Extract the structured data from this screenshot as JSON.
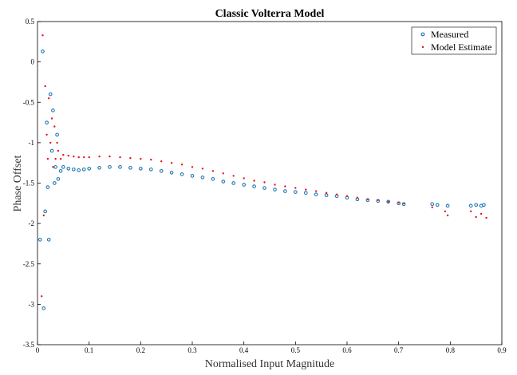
{
  "chart_data": {
    "type": "scatter",
    "title": "Classic Volterra Model",
    "xlabel": "Normalised Input Magnitude",
    "ylabel": "Phase Offset",
    "xlim": [
      0,
      0.9
    ],
    "ylim": [
      -3.5,
      0.5
    ],
    "xticks": [
      "0",
      "0.1",
      "0.2",
      "0.3",
      "0.4",
      "0.5",
      "0.6",
      "0.7",
      "0.8",
      "0.9"
    ],
    "yticks": [
      "0.5",
      "0",
      "-0.5",
      "-1",
      "-1.5",
      "-2",
      "-2.5",
      "-3",
      "-3.5"
    ],
    "grid": false,
    "legend_position": "top-right",
    "series": [
      {
        "name": "Measured",
        "color": "#1f77b4",
        "marker": "circle",
        "x": [
          0.005,
          0.01,
          0.012,
          0.015,
          0.018,
          0.02,
          0.022,
          0.025,
          0.028,
          0.03,
          0.033,
          0.035,
          0.038,
          0.04,
          0.045,
          0.05,
          0.06,
          0.07,
          0.08,
          0.09,
          0.1,
          0.12,
          0.14,
          0.16,
          0.18,
          0.2,
          0.22,
          0.24,
          0.26,
          0.28,
          0.3,
          0.32,
          0.34,
          0.36,
          0.38,
          0.4,
          0.42,
          0.44,
          0.46,
          0.48,
          0.5,
          0.52,
          0.54,
          0.56,
          0.58,
          0.6,
          0.62,
          0.64,
          0.66,
          0.68,
          0.7,
          0.71,
          0.765,
          0.775,
          0.795,
          0.84,
          0.85,
          0.86,
          0.865
        ],
        "y": [
          -2.2,
          0.13,
          -3.05,
          -1.85,
          -0.75,
          -1.55,
          -2.2,
          -0.4,
          -1.1,
          -0.6,
          -1.5,
          -1.3,
          -0.9,
          -1.45,
          -1.35,
          -1.3,
          -1.32,
          -1.33,
          -1.34,
          -1.33,
          -1.32,
          -1.31,
          -1.3,
          -1.3,
          -1.31,
          -1.32,
          -1.33,
          -1.35,
          -1.37,
          -1.39,
          -1.41,
          -1.43,
          -1.45,
          -1.48,
          -1.5,
          -1.52,
          -1.54,
          -1.56,
          -1.58,
          -1.6,
          -1.61,
          -1.62,
          -1.64,
          -1.65,
          -1.66,
          -1.68,
          -1.7,
          -1.71,
          -1.72,
          -1.73,
          -1.75,
          -1.76,
          -1.76,
          -1.77,
          -1.78,
          -1.78,
          -1.77,
          -1.78,
          -1.77
        ]
      },
      {
        "name": "Model Estimate",
        "color": "#e8141b",
        "marker": "point",
        "x": [
          0.008,
          0.01,
          0.012,
          0.015,
          0.018,
          0.02,
          0.022,
          0.025,
          0.028,
          0.03,
          0.033,
          0.035,
          0.038,
          0.04,
          0.045,
          0.05,
          0.06,
          0.07,
          0.08,
          0.09,
          0.1,
          0.12,
          0.14,
          0.16,
          0.18,
          0.2,
          0.22,
          0.24,
          0.26,
          0.28,
          0.3,
          0.32,
          0.34,
          0.36,
          0.38,
          0.4,
          0.42,
          0.44,
          0.46,
          0.48,
          0.5,
          0.52,
          0.54,
          0.56,
          0.58,
          0.6,
          0.62,
          0.64,
          0.66,
          0.68,
          0.7,
          0.71,
          0.765,
          0.79,
          0.795,
          0.84,
          0.85,
          0.86,
          0.87
        ],
        "y": [
          -2.9,
          0.33,
          -1.9,
          -0.3,
          -0.9,
          -1.2,
          -0.45,
          -1.0,
          -0.7,
          -1.3,
          -0.8,
          -1.2,
          -1.0,
          -1.1,
          -1.2,
          -1.15,
          -1.16,
          -1.17,
          -1.18,
          -1.18,
          -1.18,
          -1.17,
          -1.17,
          -1.18,
          -1.19,
          -1.2,
          -1.21,
          -1.23,
          -1.25,
          -1.27,
          -1.3,
          -1.32,
          -1.35,
          -1.38,
          -1.41,
          -1.44,
          -1.47,
          -1.49,
          -1.52,
          -1.54,
          -1.56,
          -1.58,
          -1.6,
          -1.62,
          -1.64,
          -1.66,
          -1.68,
          -1.7,
          -1.71,
          -1.73,
          -1.74,
          -1.75,
          -1.8,
          -1.85,
          -1.9,
          -1.85,
          -1.92,
          -1.88,
          -1.93
        ]
      }
    ]
  }
}
